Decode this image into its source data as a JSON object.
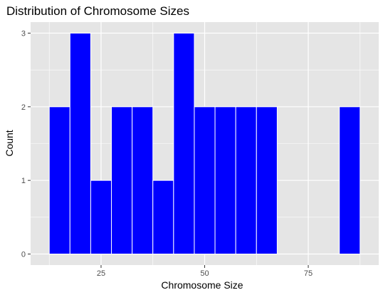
{
  "chart_data": {
    "type": "bar",
    "title": "Distribution of Chromosome Sizes",
    "xlabel": "Chromosome Size",
    "ylabel": "Count",
    "xlim": [
      8.0,
      92.0
    ],
    "ylim": [
      -0.15,
      3.15
    ],
    "x_ticks": [
      25,
      50,
      75
    ],
    "y_ticks": [
      0,
      1,
      2,
      3
    ],
    "bin_width": 5,
    "bins": [
      {
        "start": 12.5,
        "end": 17.5,
        "count": 2
      },
      {
        "start": 17.5,
        "end": 22.5,
        "count": 3
      },
      {
        "start": 22.5,
        "end": 27.5,
        "count": 1
      },
      {
        "start": 27.5,
        "end": 32.5,
        "count": 2
      },
      {
        "start": 32.5,
        "end": 37.5,
        "count": 2
      },
      {
        "start": 37.5,
        "end": 42.5,
        "count": 1
      },
      {
        "start": 42.5,
        "end": 47.5,
        "count": 3
      },
      {
        "start": 47.5,
        "end": 52.5,
        "count": 2
      },
      {
        "start": 52.5,
        "end": 57.5,
        "count": 2
      },
      {
        "start": 57.5,
        "end": 62.5,
        "count": 2
      },
      {
        "start": 62.5,
        "end": 67.5,
        "count": 2
      },
      {
        "start": 67.5,
        "end": 72.5,
        "count": 0
      },
      {
        "start": 72.5,
        "end": 77.5,
        "count": 0
      },
      {
        "start": 77.5,
        "end": 82.5,
        "count": 0
      },
      {
        "start": 82.5,
        "end": 87.5,
        "count": 2
      }
    ],
    "grid": true,
    "legend": "none",
    "colors": {
      "bar_fill": "#0000ff",
      "bar_stroke": "#ffffff",
      "panel_background": "#e5e5e5",
      "grid_line": "#ffffff"
    }
  }
}
